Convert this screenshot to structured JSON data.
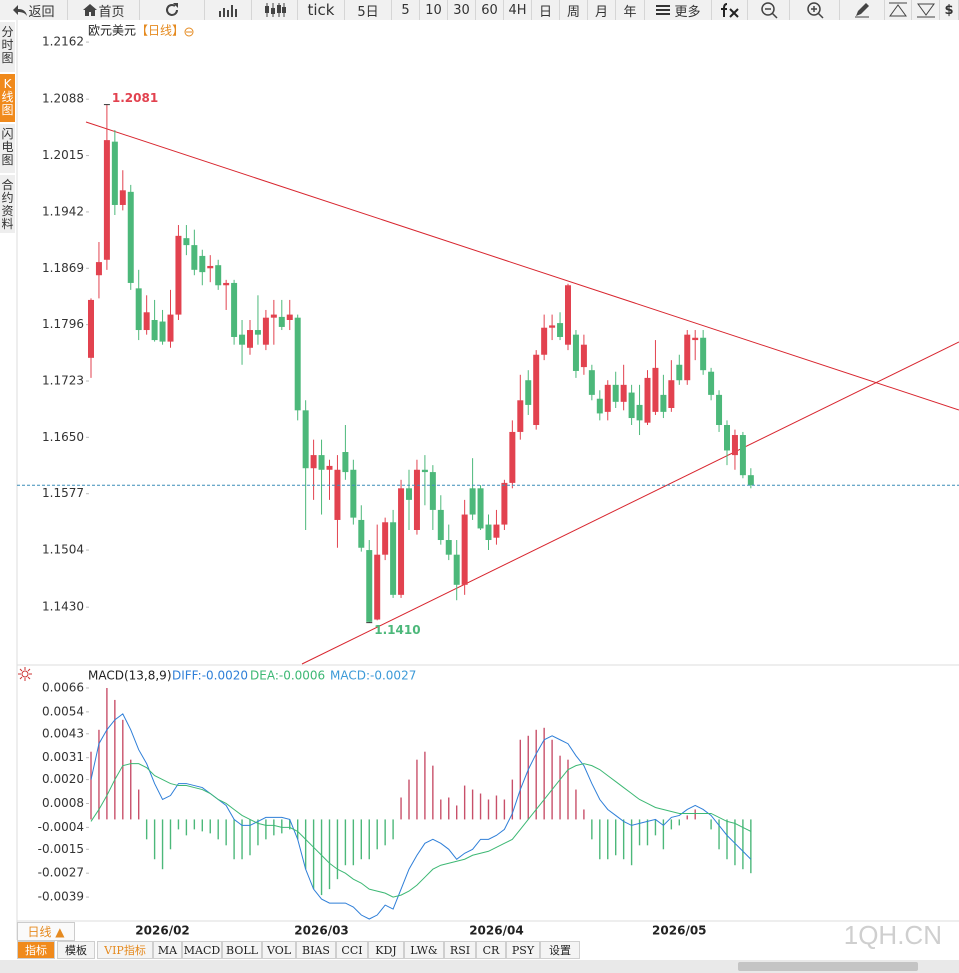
{
  "ui": {
    "toolbar": {
      "back": "返回",
      "home": "首页",
      "periods": [
        "tick",
        "5日",
        "5",
        "10",
        "30",
        "60",
        "4H",
        "日",
        "周",
        "月",
        "年"
      ],
      "more": "更多",
      "currency": "$"
    },
    "sidebar": [
      "分时图",
      "K线图",
      "闪电图",
      "合约资料"
    ],
    "symbol": "欧元美元",
    "period": "【日线】",
    "macd_title": "MACD(13,8,9)",
    "period_tab": "日线 ▲",
    "tabs": [
      "指标",
      "模板",
      "VIP指标",
      "MA",
      "MACD",
      "BOLL",
      "VOL",
      "BIAS",
      "CCI",
      "KDJ",
      "LW&",
      "RSI",
      "CR",
      "PSY",
      "设置"
    ],
    "watermark": "1QH.CN"
  },
  "chart_data": [
    {
      "type": "candlestick",
      "categories": [
        null,
        null,
        null,
        null,
        null,
        null,
        null,
        null,
        null,
        "2026/02",
        null,
        null,
        null,
        null,
        null,
        null,
        null,
        null,
        null,
        null,
        null,
        null,
        null,
        null,
        null,
        null,
        null,
        null,
        null,
        "2026/03",
        null,
        null,
        null,
        null,
        null,
        null,
        null,
        null,
        null,
        null,
        null,
        null,
        null,
        null,
        null,
        null,
        null,
        null,
        null,
        null,
        null,
        "2026/04",
        null,
        null,
        null,
        null,
        null,
        null,
        null,
        null,
        null,
        null,
        null,
        null,
        null,
        null,
        null,
        null,
        null,
        null,
        null,
        null,
        null,
        null,
        "2026/05",
        null,
        null,
        null,
        null,
        null,
        null,
        null,
        null,
        null
      ],
      "open": [
        1.1753,
        1.186,
        1.188,
        1.2033,
        1.1951,
        1.1968,
        1.1843,
        1.1789,
        1.1802,
        1.18,
        1.1774,
        1.1809,
        1.1908,
        1.1899,
        1.1885,
        1.1869,
        1.1873,
        1.1847,
        1.185,
        1.1783,
        1.1766,
        1.1789,
        1.177,
        1.1805,
        1.1806,
        1.1802,
        1.1805,
        1.1685,
        1.161,
        1.1627,
        1.1608,
        1.1543,
        1.1631,
        1.1608,
        1.1543,
        1.1504,
        1.1414,
        1.1498,
        1.154,
        1.1446,
        1.1584,
        1.153,
        1.1608,
        1.1605,
        1.1556,
        1.1517,
        1.1498,
        1.1459,
        1.1584,
        1.1584,
        1.1537,
        1.152,
        1.1537,
        1.1591,
        1.1657,
        1.1724,
        1.1666,
        1.1757,
        1.1792,
        1.1798,
        1.177,
        1.1783,
        1.1741,
        1.1737,
        1.17,
        1.1683,
        1.1718,
        1.1696,
        1.1708,
        1.1692,
        1.1669,
        1.1683,
        1.1705,
        1.1688,
        1.1744,
        1.1724,
        1.1776,
        1.1779,
        1.1735,
        1.1705,
        1.1666,
        1.1627,
        1.1653,
        1.1601
      ],
      "high": [
        1.183,
        1.1903,
        1.2081,
        1.2048,
        1.1996,
        1.1977,
        1.1867,
        1.1834,
        1.1828,
        1.1815,
        1.1841,
        1.1925,
        1.1925,
        1.1919,
        1.1893,
        1.1886,
        1.188,
        1.1854,
        1.1854,
        1.1802,
        1.1802,
        1.1834,
        1.1815,
        1.1828,
        1.1828,
        1.1828,
        1.1809,
        1.1698,
        1.1647,
        1.1647,
        1.1621,
        1.1627,
        1.1666,
        1.1621,
        1.1562,
        1.1517,
        1.1537,
        1.1546,
        1.1556,
        1.1595,
        1.1608,
        1.1621,
        1.1627,
        1.1614,
        1.1575,
        1.1537,
        1.1517,
        1.1569,
        1.1623,
        1.1588,
        1.155,
        1.1556,
        1.1595,
        1.1672,
        1.1731,
        1.1737,
        1.1763,
        1.1809,
        1.1809,
        1.1812,
        1.1849,
        1.1789,
        1.1783,
        1.1744,
        1.1711,
        1.1724,
        1.1735,
        1.1744,
        1.1718,
        1.1718,
        1.1737,
        1.1776,
        1.1731,
        1.175,
        1.1757,
        1.1789,
        1.1789,
        1.1789,
        1.174,
        1.1711,
        1.1672,
        1.166,
        1.1657,
        1.161
      ],
      "low": [
        1.1727,
        1.183,
        1.1867,
        1.1938,
        1.1944,
        1.1841,
        1.1776,
        1.1783,
        1.1774,
        1.177,
        1.1766,
        1.1802,
        1.1886,
        1.186,
        1.1847,
        1.1851,
        1.1841,
        1.1815,
        1.177,
        1.1744,
        1.1757,
        1.177,
        1.1763,
        1.177,
        1.1789,
        1.1789,
        1.1672,
        1.153,
        1.1569,
        1.155,
        1.1569,
        1.1507,
        1.1595,
        1.1537,
        1.1502,
        1.141,
        1.1413,
        1.1491,
        1.1442,
        1.1442,
        1.153,
        1.1524,
        1.1562,
        1.153,
        1.1511,
        1.1491,
        1.1439,
        1.1446,
        1.1543,
        1.153,
        1.1504,
        1.1511,
        1.153,
        1.1584,
        1.1647,
        1.1679,
        1.166,
        1.175,
        1.1776,
        1.1776,
        1.1763,
        1.1727,
        1.1731,
        1.1698,
        1.1672,
        1.1672,
        1.1688,
        1.1685,
        1.1666,
        1.1653,
        1.1666,
        1.1679,
        1.1675,
        1.1683,
        1.1718,
        1.1718,
        1.175,
        1.1731,
        1.1698,
        1.1657,
        1.1614,
        1.1608,
        1.1597,
        1.1584
      ],
      "close": [
        1.1828,
        1.1877,
        1.2035,
        1.1951,
        1.197,
        1.185,
        1.1789,
        1.1812,
        1.1776,
        1.1774,
        1.1809,
        1.1911,
        1.1899,
        1.1867,
        1.1864,
        1.1872,
        1.1847,
        1.185,
        1.178,
        1.177,
        1.1789,
        1.1783,
        1.1805,
        1.1809,
        1.1793,
        1.1809,
        1.1685,
        1.161,
        1.1627,
        1.1608,
        1.1613,
        1.1608,
        1.1605,
        1.1546,
        1.1507,
        1.1411,
        1.1498,
        1.154,
        1.1446,
        1.1584,
        1.1569,
        1.1608,
        1.1605,
        1.1556,
        1.1517,
        1.1498,
        1.1459,
        1.155,
        1.155,
        1.1532,
        1.1517,
        1.1537,
        1.1591,
        1.1657,
        1.1698,
        1.1692,
        1.1757,
        1.1792,
        1.1795,
        1.178,
        1.1847,
        1.1736,
        1.177,
        1.1705,
        1.1681,
        1.1718,
        1.1696,
        1.1718,
        1.1675,
        1.1672,
        1.1727,
        1.174,
        1.1683,
        1.1724,
        1.1724,
        1.1783,
        1.1779,
        1.1737,
        1.1705,
        1.1666,
        1.1633,
        1.1653,
        1.1601,
        1.1588
      ],
      "annotations": [
        {
          "label": "1.2081"
        },
        {
          "label": "1.1410"
        }
      ],
      "up_color": "#e2424f",
      "down_color": "#4cb87a",
      "last_price_color": "#3b8db8",
      "ylim": [
        1.1359,
        1.2188
      ],
      "yticks": [
        1.2162,
        1.2088,
        1.2015,
        1.1942,
        1.1869,
        1.1796,
        1.1723,
        {
          "value": 1.165,
          "label": "1.1650"
        },
        1.1577,
        1.1504,
        {
          "value": 1.143,
          "label": "1.1430"
        }
      ],
      "grid": false
    },
    {
      "type": "macd",
      "legend": [
        "DIFF:-0.0020",
        "DEA:-0.0006",
        "MACD:-0.0027"
      ],
      "legend_colors": [
        "#2f7fd8",
        "#3db874",
        "#3c9ad8"
      ],
      "histogram": [
        0.0034,
        0.0045,
        0.0066,
        0.006,
        0.005,
        0.003,
        0.0015,
        -0.001,
        -0.002,
        -0.0025,
        -0.0015,
        -0.0005,
        -0.0008,
        -0.0005,
        -0.0006,
        -0.0007,
        -0.001,
        -0.0013,
        -0.002,
        -0.002,
        -0.0018,
        -0.0013,
        -0.001,
        -0.0008,
        -0.0007,
        -0.0005,
        -0.001,
        -0.0025,
        -0.0035,
        -0.0038,
        -0.0035,
        -0.003,
        -0.0023,
        -0.0023,
        -0.002,
        -0.002,
        -0.0015,
        -0.0013,
        -0.001,
        0.0011,
        0.002,
        0.003,
        0.0034,
        0.0027,
        0.001,
        0.0011,
        0.0007,
        0.0017,
        0.0015,
        0.0013,
        0.001,
        0.0012,
        0.001,
        0.002,
        0.004,
        0.0042,
        0.0045,
        0.0046,
        0.004,
        0.0032,
        0.003,
        0.0015,
        0.0005,
        -0.001,
        -0.002,
        -0.002,
        -0.0018,
        -0.002,
        -0.0023,
        -0.0013,
        -0.0013,
        -0.0008,
        -0.0015,
        -0.0005,
        -0.0003,
        0.0002,
        0.0005,
        0.0,
        -0.0005,
        -0.0015,
        -0.002,
        -0.0023,
        -0.0025,
        -0.0027
      ],
      "series": [
        {
          "color": "#2f7fd8",
          "values": [
            0.002,
            0.0038,
            0.0045,
            0.005,
            0.0053,
            0.0045,
            0.0035,
            0.0028,
            0.0018,
            0.001,
            0.0012,
            0.0018,
            0.0018,
            0.0017,
            0.0016,
            0.0013,
            0.001,
            0.0007,
            0.0,
            -0.0003,
            -0.0003,
            -0.0001,
            0.0001,
            0.0001,
            0.0001,
            0.0,
            -0.001,
            -0.0025,
            -0.0035,
            -0.004,
            -0.0042,
            -0.0042,
            -0.0042,
            -0.0044,
            -0.0048,
            -0.005,
            -0.0048,
            -0.0043,
            -0.0045,
            -0.0035,
            -0.0025,
            -0.0018,
            -0.0012,
            -0.001,
            -0.0012,
            -0.0015,
            -0.002,
            -0.0017,
            -0.0015,
            -0.001,
            -0.001,
            -0.0008,
            -0.0005,
            0.0003,
            0.0015,
            0.0025,
            0.0033,
            0.004,
            0.0042,
            0.004,
            0.0038,
            0.0032,
            0.0027,
            0.0018,
            0.001,
            0.0005,
            0.0002,
            -0.0001,
            -0.0003,
            -0.0002,
            -0.0001,
            0.0,
            -0.0003,
            0.0001,
            0.0002,
            0.0005,
            0.0007,
            0.0005,
            0.0002,
            -0.0003,
            -0.0008,
            -0.0012,
            -0.0016,
            -0.002
          ]
        },
        {
          "color": "#3db874",
          "values": [
            -0.0001,
            0.0005,
            0.0012,
            0.002,
            0.0027,
            0.0028,
            0.0028,
            0.0026,
            0.0022,
            0.002,
            0.0018,
            0.0017,
            0.0017,
            0.0016,
            0.0015,
            0.0013,
            0.001,
            0.0008,
            0.0005,
            0.0002,
            0.0,
            -0.0002,
            -0.0003,
            -0.0003,
            -0.0004,
            -0.0004,
            -0.0006,
            -0.001,
            -0.0014,
            -0.0018,
            -0.0022,
            -0.0025,
            -0.0027,
            -0.003,
            -0.0032,
            -0.0035,
            -0.0036,
            -0.0037,
            -0.0039,
            -0.0038,
            -0.0036,
            -0.0033,
            -0.0029,
            -0.0025,
            -0.0023,
            -0.0022,
            -0.0021,
            -0.002,
            -0.0018,
            -0.0017,
            -0.0016,
            -0.0014,
            -0.0012,
            -0.001,
            -0.0005,
            0.0,
            0.0005,
            0.001,
            0.0015,
            0.002,
            0.0025,
            0.0027,
            0.0028,
            0.0027,
            0.0025,
            0.0022,
            0.0019,
            0.0016,
            0.0013,
            0.001,
            0.0008,
            0.0006,
            0.0005,
            0.0004,
            0.0003,
            0.0003,
            0.0003,
            0.0003,
            0.0003,
            0.0001,
            -0.0001,
            -0.0002,
            -0.0004,
            -0.0006
          ]
        }
      ],
      "up_color": "#c8506a",
      "down_color": "#4cb87a",
      "ylim": [
        -0.0051,
        0.007
      ],
      "yticks": [
        0.0066,
        0.0054,
        0.0043,
        0.0031,
        {
          "value": 0.002,
          "label": "0.0020"
        },
        0.0008,
        -0.0004,
        -0.0015,
        -0.0027,
        -0.0039
      ],
      "grid": false
    }
  ]
}
